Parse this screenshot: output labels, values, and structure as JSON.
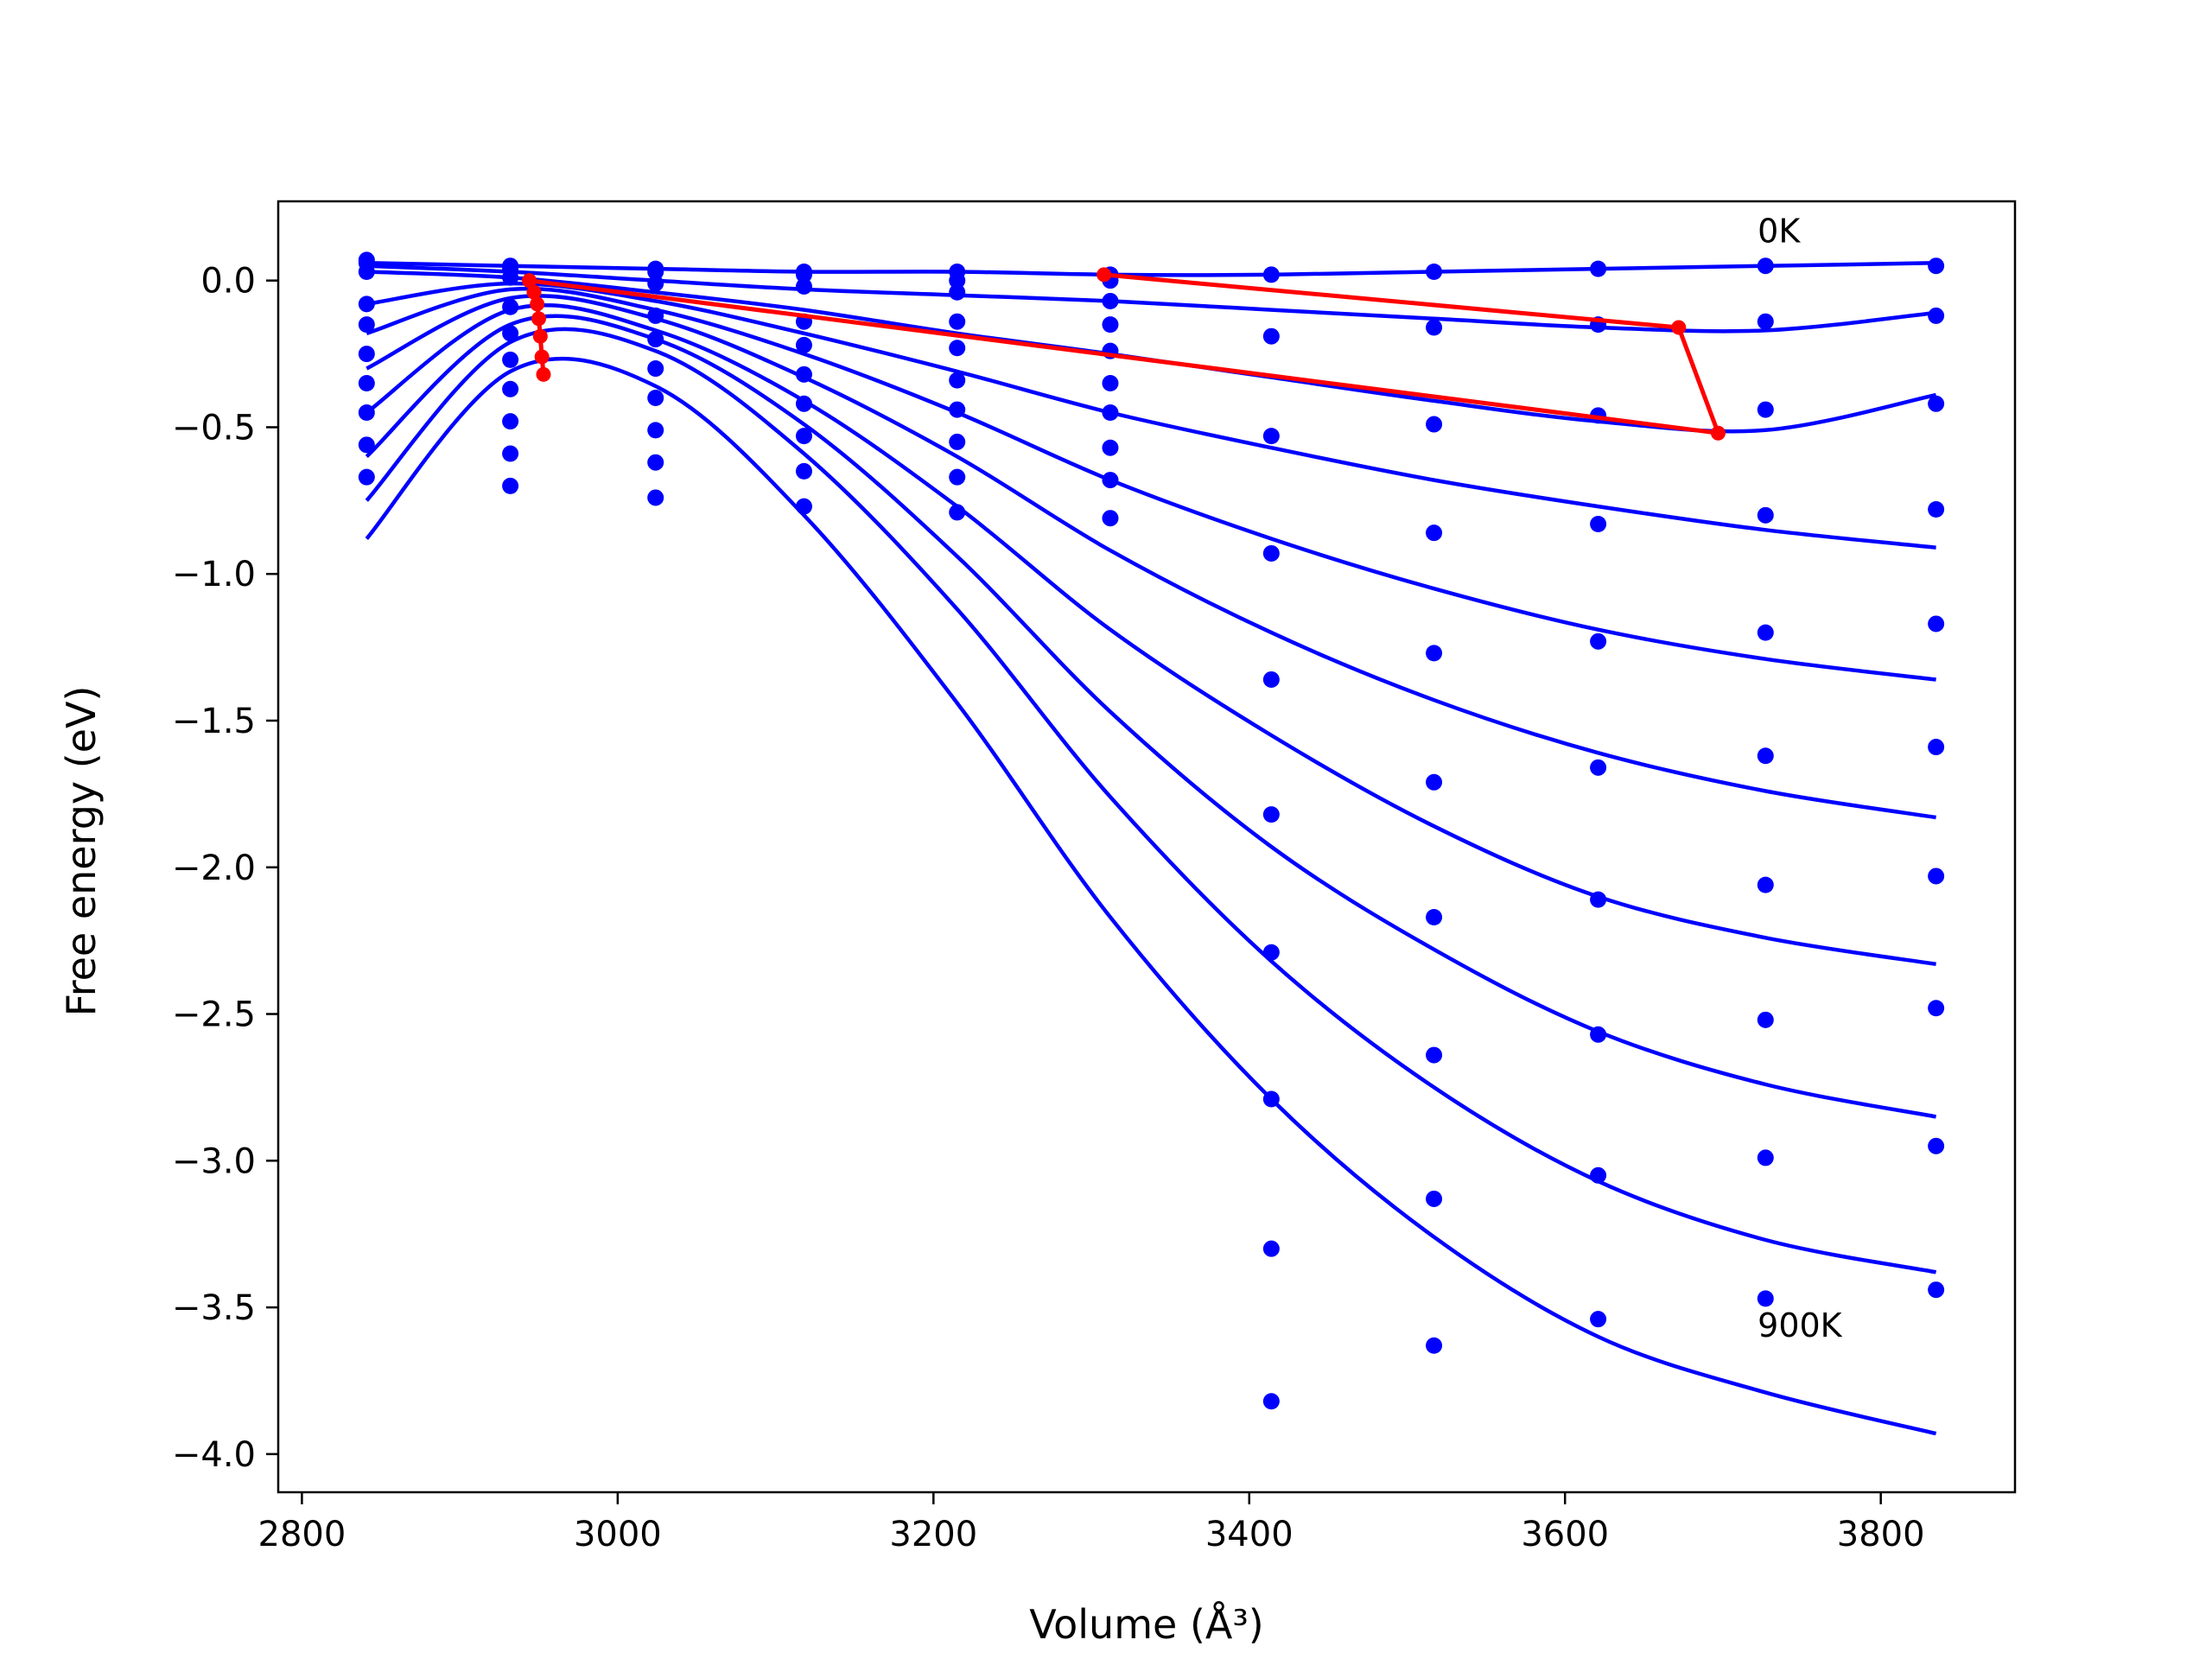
{
  "chart_data": {
    "type": "line",
    "xlabel": "Volume (Å³)",
    "ylabel": "Free energy (eV)",
    "xlim": [
      2785,
      3885
    ],
    "ylim": [
      -4.13,
      0.27
    ],
    "xticks": [
      2800,
      3000,
      3200,
      3400,
      3600,
      3800
    ],
    "yticks": [
      0.0,
      -0.5,
      -1.0,
      -1.5,
      -2.0,
      -2.5,
      -3.0,
      -3.5,
      -4.0
    ],
    "xtick_labels": [
      "2800",
      "3000",
      "3200",
      "3400",
      "3600",
      "3800"
    ],
    "ytick_labels": [
      "0.0",
      "−0.5",
      "−1.0",
      "−1.5",
      "−2.0",
      "−2.5",
      "−3.0",
      "−3.5",
      "−4.0"
    ],
    "annotations": [
      {
        "text": "0K",
        "x": 3722,
        "y": 0.13
      },
      {
        "text": "900K",
        "x": 3722,
        "y": -3.6
      }
    ],
    "series_color": "#0000ff",
    "minima_color": "#ff0000",
    "data_points": {
      "x": [
        2841,
        2932,
        3024,
        3118,
        3215,
        3312,
        3414,
        3517,
        3621,
        3727,
        3835
      ],
      "y": [
        [
          0.07,
          0.05,
          0.04,
          0.03,
          0.03,
          0.02,
          0.02,
          0.03,
          0.04,
          0.05,
          0.05
        ],
        [
          0.06,
          0.04,
          0.03,
          0.02,
          0.0,
          0.0,
          -0.19,
          -0.16,
          -0.15,
          -0.14,
          -0.12
        ],
        [
          0.03,
          0.01,
          -0.01,
          -0.02,
          -0.04,
          -0.07,
          -0.53,
          -0.49,
          -0.46,
          -0.44,
          -0.42
        ],
        [
          -0.08,
          -0.09,
          -0.12,
          -0.14,
          -0.14,
          -0.15,
          -0.93,
          -0.86,
          -0.83,
          -0.8,
          -0.78
        ],
        [
          -0.15,
          -0.18,
          -0.2,
          -0.22,
          -0.23,
          -0.24,
          -1.36,
          -1.27,
          -1.23,
          -1.2,
          -1.17
        ],
        [
          -0.25,
          -0.27,
          -0.3,
          -0.32,
          -0.34,
          -0.35,
          -1.82,
          -1.71,
          -1.66,
          -1.62,
          -1.59
        ],
        [
          -0.35,
          -0.37,
          -0.4,
          -0.42,
          -0.44,
          -0.45,
          -2.29,
          -2.17,
          -2.11,
          -2.06,
          -2.03
        ],
        [
          -0.45,
          -0.48,
          -0.51,
          -0.53,
          -0.55,
          -0.57,
          -2.79,
          -2.64,
          -2.57,
          -2.52,
          -2.48
        ],
        [
          -0.56,
          -0.59,
          -0.62,
          -0.65,
          -0.67,
          -0.68,
          -3.3,
          -3.13,
          -3.05,
          -2.99,
          -2.95
        ],
        [
          -0.67,
          -0.7,
          -0.74,
          -0.77,
          -0.79,
          -0.81,
          -3.82,
          -3.63,
          -3.54,
          -3.47,
          -3.44
        ]
      ]
    },
    "fit_curves": [
      {
        "label": "0K",
        "points": [
          [
            2841,
            0.06
          ],
          [
            2932,
            0.05
          ],
          [
            3024,
            0.04
          ],
          [
            3118,
            0.03
          ],
          [
            3215,
            0.03
          ],
          [
            3312,
            0.02
          ],
          [
            3414,
            0.02
          ],
          [
            3517,
            0.03
          ],
          [
            3621,
            0.04
          ],
          [
            3727,
            0.05
          ],
          [
            3835,
            0.06
          ]
        ]
      },
      {
        "points": [
          [
            2841,
            0.05
          ],
          [
            2932,
            0.03
          ],
          [
            3024,
            0.0
          ],
          [
            3118,
            -0.03
          ],
          [
            3215,
            -0.05
          ],
          [
            3312,
            -0.07
          ],
          [
            3414,
            -0.1
          ],
          [
            3517,
            -0.13
          ],
          [
            3621,
            -0.16
          ],
          [
            3727,
            -0.17
          ],
          [
            3835,
            -0.11
          ]
        ]
      },
      {
        "points": [
          [
            2841,
            0.03
          ],
          [
            2932,
            0.01
          ],
          [
            3024,
            -0.04
          ],
          [
            3118,
            -0.1
          ],
          [
            3215,
            -0.18
          ],
          [
            3312,
            -0.25
          ],
          [
            3414,
            -0.33
          ],
          [
            3517,
            -0.41
          ],
          [
            3621,
            -0.48
          ],
          [
            3727,
            -0.51
          ],
          [
            3835,
            -0.39
          ]
        ]
      },
      {
        "points": [
          [
            2841,
            -0.08
          ],
          [
            2932,
            -0.01
          ],
          [
            3024,
            -0.07
          ],
          [
            3118,
            -0.18
          ],
          [
            3215,
            -0.31
          ],
          [
            3312,
            -0.45
          ],
          [
            3414,
            -0.57
          ],
          [
            3517,
            -0.68
          ],
          [
            3621,
            -0.77
          ],
          [
            3727,
            -0.85
          ],
          [
            3835,
            -0.91
          ]
        ]
      },
      {
        "points": [
          [
            2841,
            -0.18
          ],
          [
            2932,
            -0.03
          ],
          [
            3024,
            -0.1
          ],
          [
            3118,
            -0.25
          ],
          [
            3215,
            -0.45
          ],
          [
            3312,
            -0.68
          ],
          [
            3414,
            -0.88
          ],
          [
            3517,
            -1.05
          ],
          [
            3621,
            -1.19
          ],
          [
            3727,
            -1.29
          ],
          [
            3835,
            -1.36
          ]
        ]
      },
      {
        "points": [
          [
            2841,
            -0.3
          ],
          [
            2932,
            -0.06
          ],
          [
            3024,
            -0.13
          ],
          [
            3118,
            -0.33
          ],
          [
            3215,
            -0.6
          ],
          [
            3312,
            -0.92
          ],
          [
            3414,
            -1.2
          ],
          [
            3517,
            -1.43
          ],
          [
            3621,
            -1.61
          ],
          [
            3727,
            -1.74
          ],
          [
            3835,
            -1.83
          ]
        ]
      },
      {
        "points": [
          [
            2841,
            -0.45
          ],
          [
            2932,
            -0.1
          ],
          [
            3024,
            -0.17
          ],
          [
            3118,
            -0.41
          ],
          [
            3215,
            -0.77
          ],
          [
            3312,
            -1.19
          ],
          [
            3414,
            -1.55
          ],
          [
            3517,
            -1.86
          ],
          [
            3621,
            -2.1
          ],
          [
            3727,
            -2.24
          ],
          [
            3835,
            -2.33
          ]
        ]
      },
      {
        "points": [
          [
            2841,
            -0.6
          ],
          [
            2932,
            -0.15
          ],
          [
            3024,
            -0.2
          ],
          [
            3118,
            -0.49
          ],
          [
            3215,
            -0.94
          ],
          [
            3312,
            -1.47
          ],
          [
            3414,
            -1.93
          ],
          [
            3517,
            -2.28
          ],
          [
            3621,
            -2.56
          ],
          [
            3727,
            -2.74
          ],
          [
            3835,
            -2.85
          ]
        ]
      },
      {
        "points": [
          [
            2841,
            -0.75
          ],
          [
            2932,
            -0.21
          ],
          [
            3024,
            -0.24
          ],
          [
            3118,
            -0.59
          ],
          [
            3215,
            -1.12
          ],
          [
            3312,
            -1.76
          ],
          [
            3414,
            -2.32
          ],
          [
            3517,
            -2.75
          ],
          [
            3621,
            -3.07
          ],
          [
            3727,
            -3.27
          ],
          [
            3835,
            -3.38
          ]
        ]
      },
      {
        "label": "900K",
        "points": [
          [
            2841,
            -0.88
          ],
          [
            2932,
            -0.31
          ],
          [
            3024,
            -0.36
          ],
          [
            3118,
            -0.8
          ],
          [
            3215,
            -1.44
          ],
          [
            3312,
            -2.17
          ],
          [
            3414,
            -2.79
          ],
          [
            3517,
            -3.26
          ],
          [
            3621,
            -3.6
          ],
          [
            3727,
            -3.79
          ],
          [
            3835,
            -3.93
          ]
        ]
      }
    ],
    "minima_path": {
      "x": [
        3308,
        3672,
        3697,
        2944,
        2947,
        2949,
        2950,
        2951,
        2952,
        2953
      ],
      "y": [
        0.02,
        -0.16,
        -0.52,
        0.0,
        -0.04,
        -0.08,
        -0.13,
        -0.19,
        -0.26,
        -0.32
      ]
    }
  }
}
